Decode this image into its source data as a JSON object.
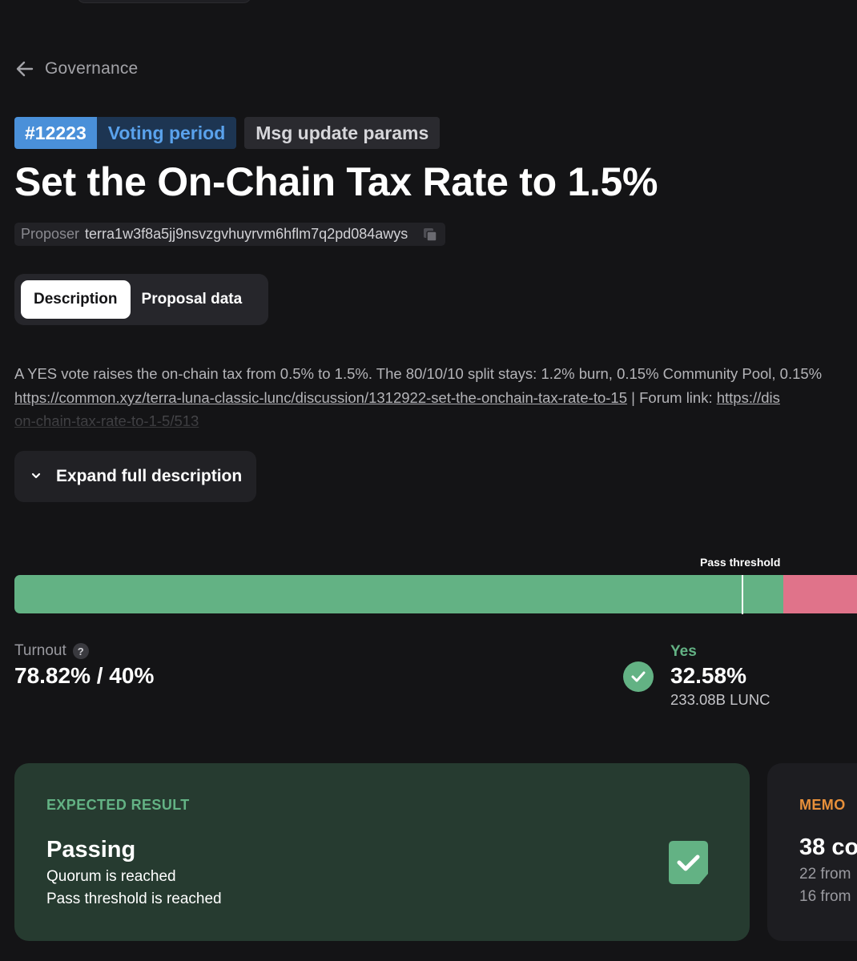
{
  "nav": {
    "back_label": "Governance"
  },
  "proposal": {
    "id": "#12223",
    "status": "Voting period",
    "type": "Msg update params",
    "title": "Set the On-Chain Tax Rate to 1.5%",
    "proposer_label": "Proposer",
    "proposer_address": "terra1w3f8a5jj9nsvzgvhuyrvm6hflm7q2pd084awys"
  },
  "tabs": [
    {
      "label": "Description",
      "active": true
    },
    {
      "label": "Proposal data",
      "active": false
    }
  ],
  "description": {
    "line1": "A YES vote raises the on-chain tax from 0.5% to 1.5%. The 80/10/10 split stays: 1.2% burn, 0.15% Community Pool, 0.15%",
    "link1": "https://common.xyz/terra-luna-classic-lunc/discussion/1312922-set-the-onchain-tax-rate-to-15",
    "separator": " | Forum link: ",
    "link2": "https://dis",
    "line3": "on-chain-tax-rate-to-1-5/513",
    "expand_label": "Expand full description"
  },
  "vote_bar": {
    "threshold_label": "Pass threshold",
    "yes_fraction": 0.906,
    "threshold_fraction": 0.857,
    "colors": {
      "yes": "#63b284",
      "no": "#e0738a"
    }
  },
  "turnout": {
    "label": "Turnout",
    "value": "78.82% / 40%"
  },
  "yes_summary": {
    "label": "Yes",
    "percent": "32.58%",
    "amount": "233.08B LUNC"
  },
  "expected_result": {
    "heading": "EXPECTED RESULT",
    "title": "Passing",
    "line1": "Quorum is reached",
    "line2": "Pass threshold is reached"
  },
  "memo_card": {
    "heading": "MEMO",
    "title": "38 co",
    "line1": "22 from",
    "line2": "16 from"
  },
  "icons": {
    "back": "arrow-left-icon",
    "copy": "copy-icon",
    "chevron": "chevron-down-icon",
    "help": "help-icon",
    "check": "check-circle-icon",
    "result": "check-square-icon"
  }
}
